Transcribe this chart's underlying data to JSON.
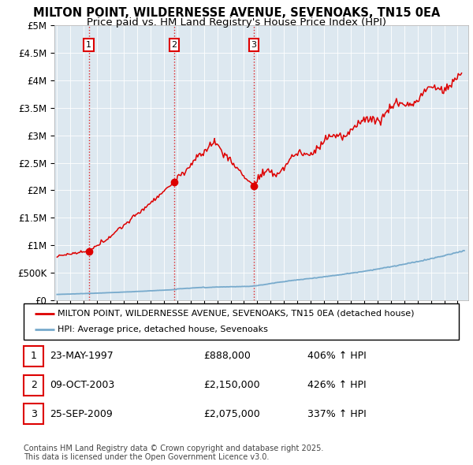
{
  "title_line1": "MILTON POINT, WILDERNESSE AVENUE, SEVENOAKS, TN15 0EA",
  "title_line2": "Price paid vs. HM Land Registry's House Price Index (HPI)",
  "ylim": [
    0,
    5000000
  ],
  "xlim_start": 1994.8,
  "xlim_end": 2025.8,
  "yticks": [
    0,
    500000,
    1000000,
    1500000,
    2000000,
    2500000,
    3000000,
    3500000,
    4000000,
    4500000,
    5000000
  ],
  "ytick_labels": [
    "£0",
    "£500K",
    "£1M",
    "£1.5M",
    "£2M",
    "£2.5M",
    "£3M",
    "£3.5M",
    "£4M",
    "£4.5M",
    "£5M"
  ],
  "xticks": [
    1995,
    1996,
    1997,
    1998,
    1999,
    2000,
    2001,
    2002,
    2003,
    2004,
    2005,
    2006,
    2007,
    2008,
    2009,
    2010,
    2011,
    2012,
    2013,
    2014,
    2015,
    2016,
    2017,
    2018,
    2019,
    2020,
    2021,
    2022,
    2023,
    2024,
    2025
  ],
  "sale_points": [
    {
      "label": "1",
      "year": 1997.38,
      "price": 888000
    },
    {
      "label": "2",
      "year": 2003.77,
      "price": 2150000
    },
    {
      "label": "3",
      "year": 2009.73,
      "price": 2075000
    }
  ],
  "red_line_color": "#dd0000",
  "blue_line_color": "#77aacc",
  "background_color": "#dde8f0",
  "plot_bg_color": "#dde8f0",
  "grid_color": "#ffffff",
  "vline_color": "#dd0000",
  "legend_line1": "MILTON POINT, WILDERNESSE AVENUE, SEVENOAKS, TN15 0EA (detached house)",
  "legend_line2": "HPI: Average price, detached house, Sevenoaks",
  "table_entries": [
    {
      "num": "1",
      "date": "23-MAY-1997",
      "price": "£888,000",
      "hpi": "406% ↑ HPI"
    },
    {
      "num": "2",
      "date": "09-OCT-2003",
      "price": "£2,150,000",
      "hpi": "426% ↑ HPI"
    },
    {
      "num": "3",
      "date": "25-SEP-2009",
      "price": "£2,075,000",
      "hpi": "337% ↑ HPI"
    }
  ],
  "footnote": "Contains HM Land Registry data © Crown copyright and database right 2025.\nThis data is licensed under the Open Government Licence v3.0.",
  "title_fontsize": 10.5,
  "subtitle_fontsize": 9.5,
  "tick_fontsize": 8.5,
  "legend_fontsize": 8,
  "table_fontsize": 9,
  "footnote_fontsize": 7
}
